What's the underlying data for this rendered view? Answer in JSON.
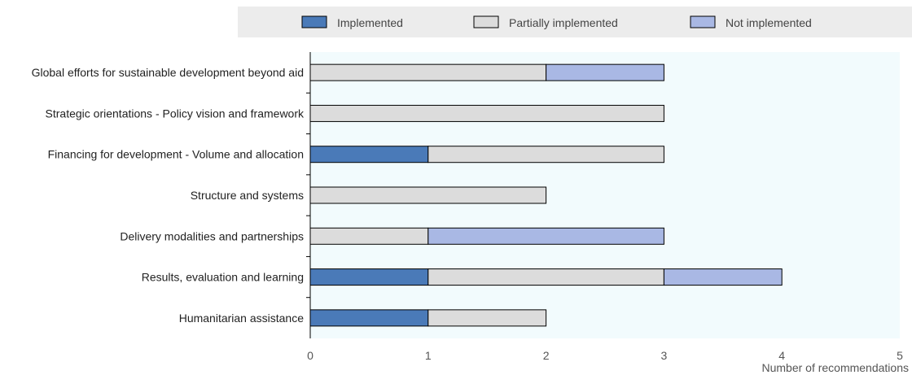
{
  "chart_data": {
    "type": "bar",
    "orientation": "horizontal",
    "stacked": true,
    "categories": [
      "Global efforts for sustainable development beyond aid",
      "Strategic orientations - Policy vision and framework",
      "Financing for development - Volume and allocation",
      "Structure and systems",
      "Delivery modalities and partnerships",
      "Results, evaluation and learning",
      "Humanitarian assistance"
    ],
    "series": [
      {
        "name": "Implemented",
        "color": "#4a7ab8",
        "values": [
          0,
          0,
          1,
          0,
          0,
          1,
          1
        ]
      },
      {
        "name": "Partially implemented",
        "color": "#dcdcdc",
        "values": [
          2,
          3,
          2,
          2,
          1,
          2,
          1
        ]
      },
      {
        "name": "Not implemented",
        "color": "#a9b8e4",
        "values": [
          1,
          0,
          0,
          0,
          2,
          1,
          0
        ]
      }
    ],
    "xlim": [
      0,
      5
    ],
    "xticks": [
      "0",
      "1",
      "2",
      "3",
      "4",
      "5"
    ],
    "xlabel": "Number of recommendations",
    "legend_position": "top",
    "plot_background": "#f2fbfd"
  }
}
